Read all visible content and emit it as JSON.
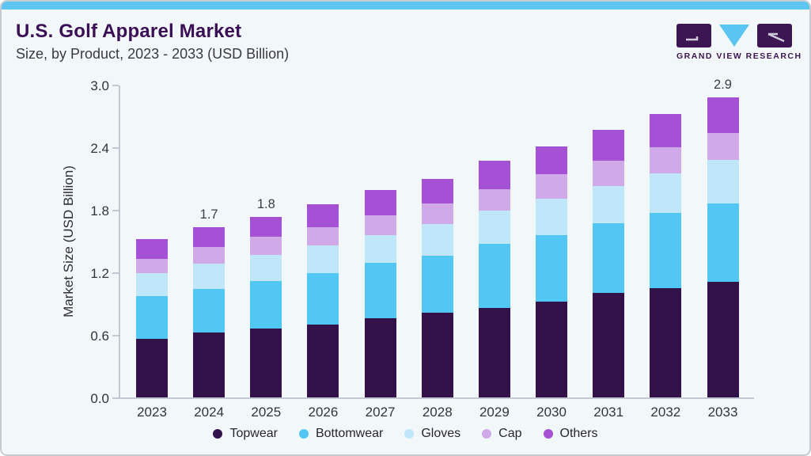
{
  "header": {
    "title": "U.S. Golf Apparel Market",
    "subtitle": "Size, by Product, 2023 - 2033 (USD Billion)"
  },
  "logo": {
    "text": "GRAND VIEW RESEARCH"
  },
  "chart_data": {
    "type": "bar",
    "stacked": true,
    "title": "U.S. Golf Apparel Market Size, by Product, 2023 - 2033 (USD Billion)",
    "xlabel": "",
    "ylabel": "Market Size (USD Billion)",
    "ylim": [
      0,
      3.0
    ],
    "y_ticks": [
      "0.0",
      "0.6",
      "1.2",
      "1.8",
      "2.4",
      "3.0"
    ],
    "grid": false,
    "legend_position": "bottom",
    "categories": [
      "2023",
      "2024",
      "2025",
      "2026",
      "2027",
      "2028",
      "2029",
      "2030",
      "2031",
      "2032",
      "2033"
    ],
    "series": [
      {
        "name": "Topwear",
        "color": "#33124a",
        "values": [
          0.56,
          0.62,
          0.66,
          0.7,
          0.76,
          0.81,
          0.86,
          0.92,
          1.0,
          1.05,
          1.11
        ]
      },
      {
        "name": "Bottomwear",
        "color": "#53c7f4",
        "values": [
          0.41,
          0.42,
          0.46,
          0.49,
          0.53,
          0.55,
          0.61,
          0.64,
          0.67,
          0.72,
          0.75
        ]
      },
      {
        "name": "Gloves",
        "color": "#c0e7f9",
        "values": [
          0.22,
          0.24,
          0.25,
          0.27,
          0.27,
          0.3,
          0.32,
          0.35,
          0.36,
          0.38,
          0.42
        ]
      },
      {
        "name": "Cap",
        "color": "#d0a9e9",
        "values": [
          0.14,
          0.16,
          0.17,
          0.17,
          0.19,
          0.2,
          0.21,
          0.23,
          0.24,
          0.25,
          0.26
        ]
      },
      {
        "name": "Others",
        "color": "#a551d6",
        "values": [
          0.19,
          0.19,
          0.19,
          0.22,
          0.24,
          0.24,
          0.27,
          0.27,
          0.3,
          0.32,
          0.34
        ]
      }
    ],
    "bar_labels": {
      "2024": "1.7",
      "2025": "1.8",
      "2033": "2.9"
    }
  },
  "ui_colors": {
    "card_background": "#f2f7fa",
    "top_strip": "#5fc6f2",
    "title_purple": "#3a0f55",
    "axis_gray": "#c3c9d2",
    "logo_purple": "#3b1652",
    "logo_blue": "#5bc5f1"
  }
}
